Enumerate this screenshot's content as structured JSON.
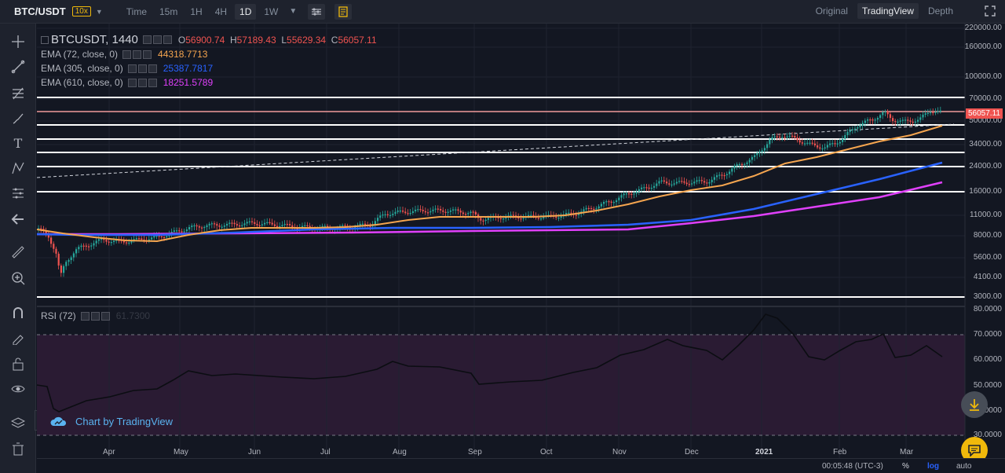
{
  "topbar": {
    "symbol": "BTC/USDT",
    "leverage": "10x",
    "intervals": [
      "Time",
      "15m",
      "1H",
      "4H",
      "1D",
      "1W"
    ],
    "active_interval": "1D",
    "views": [
      "Original",
      "TradingView",
      "Depth"
    ],
    "active_view": "TradingView"
  },
  "legend": {
    "title": "BTCUSDT, 1440",
    "o_label": "O",
    "o": "56900.74",
    "h_label": "H",
    "h": "57189.43",
    "l_label": "L",
    "l": "55629.34",
    "c_label": "C",
    "c": "56057.11",
    "ema72_label": "EMA (72, close, 0)",
    "ema72": "44318.7713",
    "ema305_label": "EMA (305, close, 0)",
    "ema305": "25387.7817",
    "ema610_label": "EMA (610, close, 0)",
    "ema610": "18251.5789",
    "rsi_label": "RSI (72)",
    "rsi": "61.7300"
  },
  "colors": {
    "ema72": "#f5a54f",
    "ema305": "#2962ff",
    "ema610": "#e040fb",
    "up": "#26a69a",
    "down": "#ef5350"
  },
  "price_axis": {
    "labels": [
      "220000.00",
      "160000.00",
      "100000.00",
      "70000.00",
      "50000.00",
      "34000.00",
      "24000.00",
      "16000.00",
      "11000.00",
      "8000.00",
      "5600.00",
      "4100.00",
      "3000.00"
    ],
    "current": "56057.11"
  },
  "rsi_axis": {
    "labels": [
      "80.0000",
      "70.0000",
      "60.0000",
      "50.0000",
      "40.0000",
      "30.0000"
    ]
  },
  "time_axis": [
    "Apr",
    "May",
    "Jun",
    "Jul",
    "Aug",
    "Sep",
    "Oct",
    "Nov",
    "Dec",
    "2021",
    "Feb",
    "Mar"
  ],
  "watermark": "Chart by TradingView",
  "footer": {
    "time": "00:05:48 (UTC-3)",
    "percent": "%",
    "log": "log",
    "auto": "auto"
  }
}
